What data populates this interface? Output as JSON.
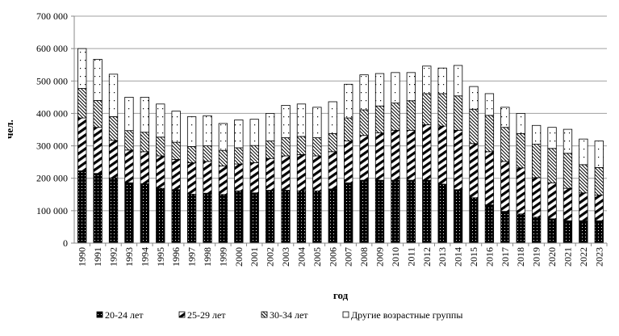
{
  "chart_data": {
    "type": "bar",
    "stacked": true,
    "xlabel": "год",
    "ylabel": "чел.",
    "ylim": [
      0,
      700000
    ],
    "yticks": [
      "0",
      "100 000",
      "200 000",
      "300 000",
      "400 000",
      "500 000",
      "600 000",
      "700 000"
    ],
    "grid": true,
    "legend_position": "bottom",
    "categories": [
      "1990",
      "1991",
      "1992",
      "1993",
      "1994",
      "1995",
      "1996",
      "1997",
      "1998",
      "1999",
      "2000",
      "2001",
      "2002",
      "2003",
      "2004",
      "2005",
      "2006",
      "2007",
      "2008",
      "2009",
      "2010",
      "2011",
      "2012",
      "2013",
      "2014",
      "2015",
      "2016",
      "2017",
      "2018",
      "2019",
      "2020",
      "2021",
      "2022",
      "2023"
    ],
    "series": [
      {
        "name": "20-24 лет",
        "pattern": "black-dots",
        "values": [
          223000,
          215000,
          201000,
          186000,
          183000,
          169000,
          165000,
          151000,
          154000,
          150000,
          161000,
          155000,
          163000,
          163000,
          161000,
          161000,
          167000,
          186000,
          194000,
          194000,
          194000,
          194000,
          194000,
          182000,
          165000,
          140000,
          118000,
          98000,
          90000,
          80000,
          75000,
          69000,
          69000,
          69000
        ]
      },
      {
        "name": "25-29 лет",
        "pattern": "thick-diagonal",
        "values": [
          163000,
          142000,
          116000,
          101000,
          99000,
          100000,
          93000,
          97000,
          98000,
          88000,
          83000,
          93000,
          98000,
          106000,
          112000,
          108000,
          115000,
          129000,
          138000,
          146000,
          154000,
          154000,
          171000,
          179000,
          183000,
          167000,
          164000,
          154000,
          142000,
          122000,
          111000,
          100000,
          86000,
          79000
        ]
      },
      {
        "name": "30-34 лет",
        "pattern": "thin-diagonal",
        "values": [
          91000,
          83000,
          73000,
          60000,
          60000,
          58000,
          53000,
          50000,
          48000,
          48000,
          50000,
          53000,
          54000,
          56000,
          56000,
          56000,
          56000,
          71000,
          79000,
          83000,
          84000,
          91000,
          96000,
          100000,
          106000,
          106000,
          112000,
          105000,
          106000,
          103000,
          106000,
          108000,
          87000,
          85000
        ]
      },
      {
        "name": "Другие возрастные группы",
        "pattern": "sparse-dots",
        "values": [
          123000,
          127000,
          131000,
          103000,
          108000,
          102000,
          96000,
          92000,
          93000,
          83000,
          86000,
          81000,
          85000,
          100000,
          100000,
          94000,
          98000,
          104000,
          108000,
          100000,
          94000,
          87000,
          85000,
          79000,
          94000,
          70000,
          67000,
          62000,
          62000,
          58000,
          65000,
          74000,
          79000,
          82000
        ]
      }
    ],
    "colors": {
      "bar_outline": "#000000",
      "grid": "#a0a0a0"
    }
  }
}
